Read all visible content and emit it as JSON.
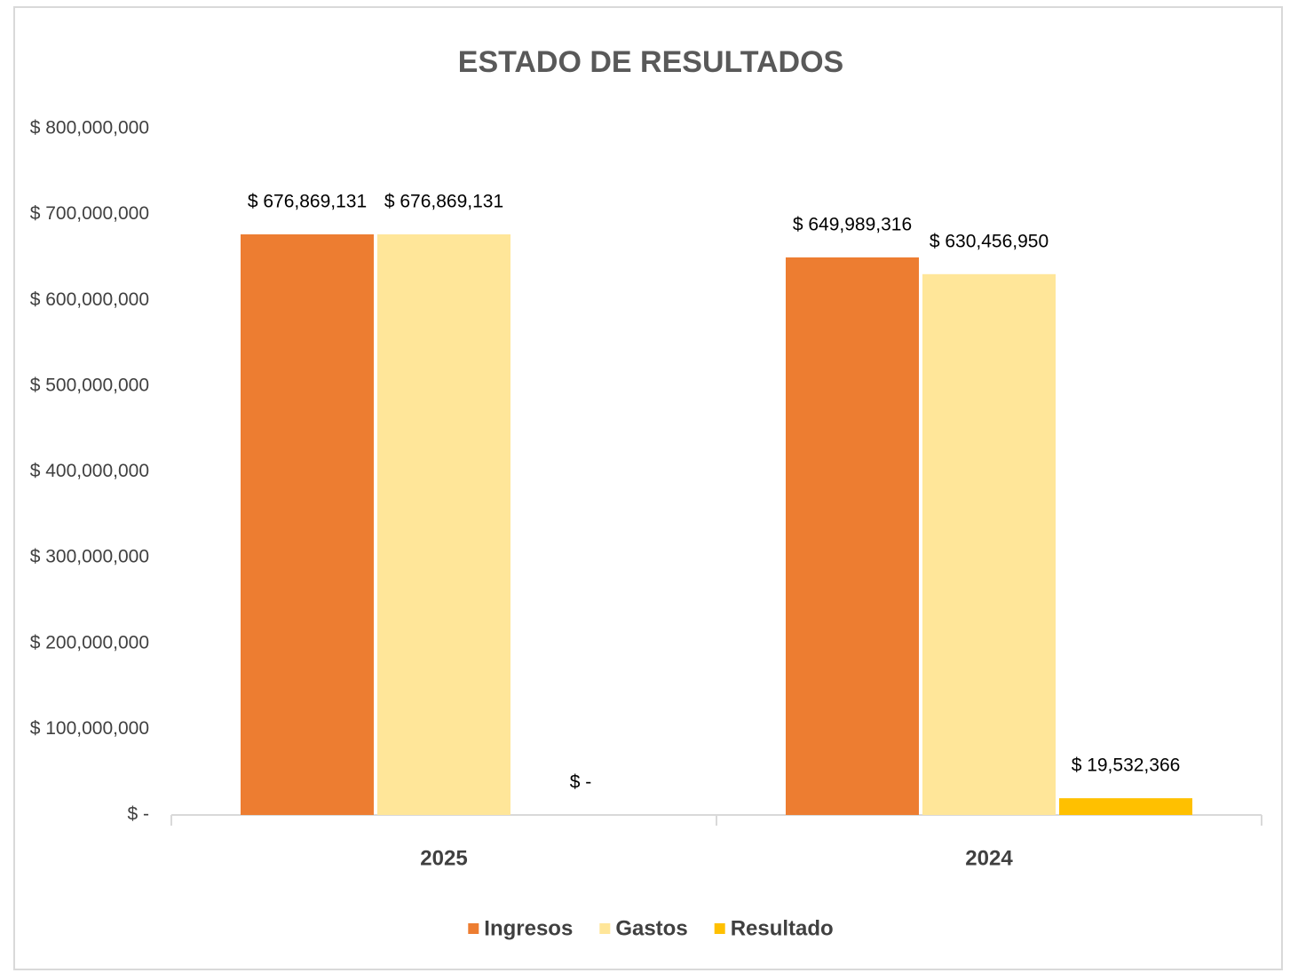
{
  "chart_data": {
    "type": "bar",
    "title": "ESTADO DE  RESULTADOS",
    "categories": [
      "2025",
      "2024"
    ],
    "series": [
      {
        "name": "Ingresos",
        "color": "#ED7D31",
        "values": [
          676869131,
          649989316
        ],
        "value_labels": [
          "$ 676,869,131",
          "$ 649,989,316"
        ]
      },
      {
        "name": "Gastos",
        "color": "#FFE699",
        "values": [
          676869131,
          630456950
        ],
        "value_labels": [
          "$ 676,869,131",
          "$ 630,456,950"
        ]
      },
      {
        "name": "Resultado",
        "color": "#FFC000",
        "values": [
          0,
          19532366
        ],
        "value_labels": [
          "$ -",
          "$ 19,532,366"
        ]
      }
    ],
    "ylim": [
      0,
      800000000
    ],
    "yticks": [
      {
        "value": 0,
        "label": "$ -"
      },
      {
        "value": 100000000,
        "label": "$ 100,000,000"
      },
      {
        "value": 200000000,
        "label": "$ 200,000,000"
      },
      {
        "value": 300000000,
        "label": "$ 300,000,000"
      },
      {
        "value": 400000000,
        "label": "$ 400,000,000"
      },
      {
        "value": 500000000,
        "label": "$ 500,000,000"
      },
      {
        "value": 600000000,
        "label": "$ 600,000,000"
      },
      {
        "value": 700000000,
        "label": "$ 700,000,000"
      },
      {
        "value": 800000000,
        "label": "$ 800,000,000"
      }
    ],
    "grid": false,
    "legend": "bottom"
  }
}
